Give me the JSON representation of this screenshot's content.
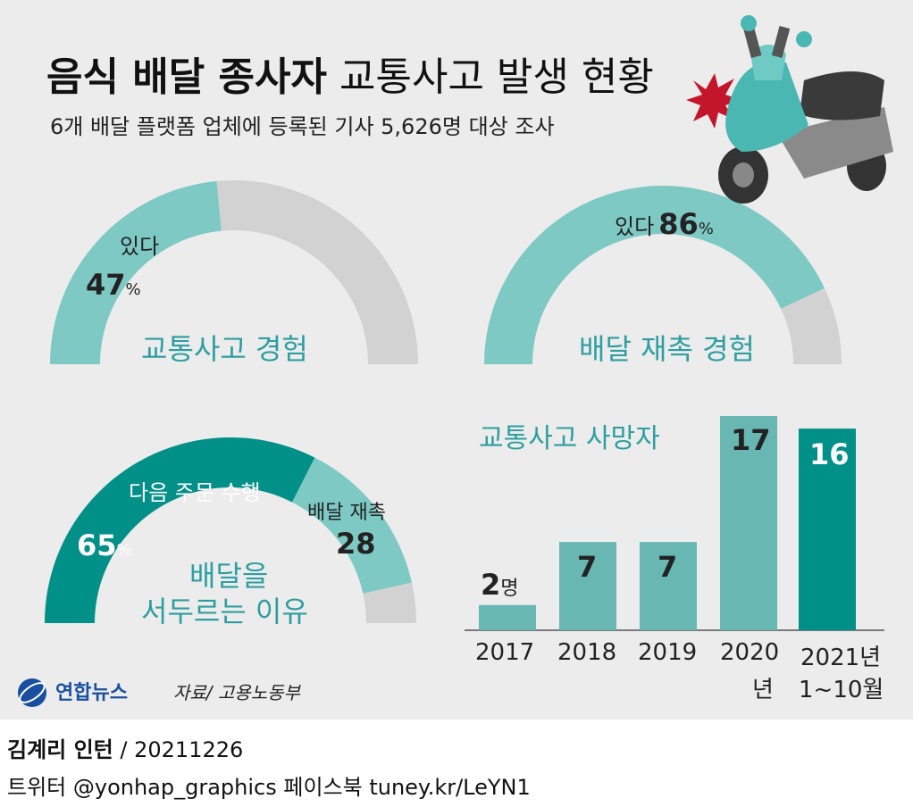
{
  "title_bold": "음식 배달 종사자",
  "title_rest": "교통사고 발생 현황",
  "subtitle": "6개 배달 플랫폼 업체에 등록된 기사 5,626명 대상 조사",
  "colors": {
    "teal_light": "#7ec9c4",
    "teal_dark": "#009088",
    "teal_bar": "#68b7b2",
    "gray": "#d2d2d2",
    "text_teal": "#2e9ea0"
  },
  "gauge_accident": {
    "center_label": "교통사고 경험",
    "answer_label": "있다",
    "value": 47,
    "value_text": "47",
    "unit": "%"
  },
  "gauge_rush": {
    "center_label": "배달 재촉 경험",
    "answer_label": "있다",
    "value": 86,
    "value_text": "86",
    "unit": "%"
  },
  "gauge_reason": {
    "center_label_line1": "배달을",
    "center_label_line2": "서두르는 이유",
    "seg1_label": "다음 주문 수행",
    "seg1_value": 65,
    "seg1_value_text": "65",
    "seg1_unit": "%",
    "seg2_label": "배달 재촉",
    "seg2_value": 28,
    "seg2_value_text": "28"
  },
  "chart_data": {
    "type": "bar",
    "title": "교통사고 사망자",
    "categories": [
      "2017",
      "2018",
      "2019",
      "2020년",
      "2021년 1~10월"
    ],
    "category_labels": [
      {
        "line1": "2017",
        "line2": ""
      },
      {
        "line1": "2018",
        "line2": ""
      },
      {
        "line1": "2019",
        "line2": ""
      },
      {
        "line1": "2020",
        "line2": "년"
      },
      {
        "line1": "2021년",
        "line2": "1~10월"
      }
    ],
    "values": [
      2,
      7,
      7,
      17,
      16
    ],
    "value_labels": [
      "2",
      "7",
      "7",
      "17",
      "16"
    ],
    "first_unit": "명",
    "ylim": [
      0,
      17
    ]
  },
  "brand": "연합뉴스",
  "source": "자료/ 고용노동부",
  "footer": {
    "author": "김계리 인턴",
    "date": " / 20211226",
    "social": "트위터 @yonhap_graphics  페이스북 tuney.kr/LeYN1"
  }
}
